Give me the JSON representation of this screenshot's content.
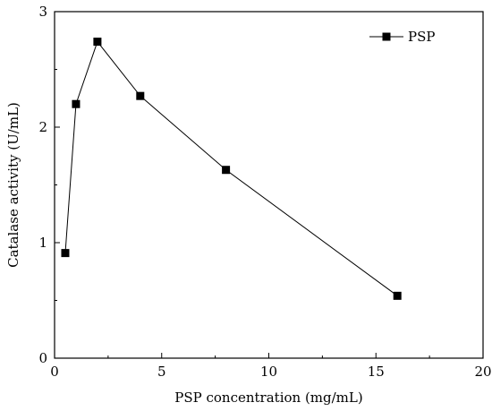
{
  "chart_data": {
    "type": "line",
    "title": "",
    "xlabel": "PSP concentration (mg/mL)",
    "ylabel": "Catalase activity (U/mL)",
    "xlim": [
      0,
      20
    ],
    "ylim": [
      0,
      3
    ],
    "xticks": [
      0,
      5,
      10,
      15,
      20
    ],
    "yticks": [
      0,
      1,
      2,
      3
    ],
    "x_tick_labels": [
      "0",
      "5",
      "10",
      "15",
      "20"
    ],
    "y_tick_labels": [
      "0",
      "1",
      "2",
      "3"
    ],
    "grid": false,
    "legend_position": "top-right",
    "series": [
      {
        "name": "PSP",
        "marker": "square",
        "color": "#000000",
        "x": [
          0.5,
          1,
          2,
          4,
          8,
          16
        ],
        "y": [
          0.91,
          2.2,
          2.74,
          2.27,
          1.63,
          0.54
        ]
      }
    ]
  }
}
